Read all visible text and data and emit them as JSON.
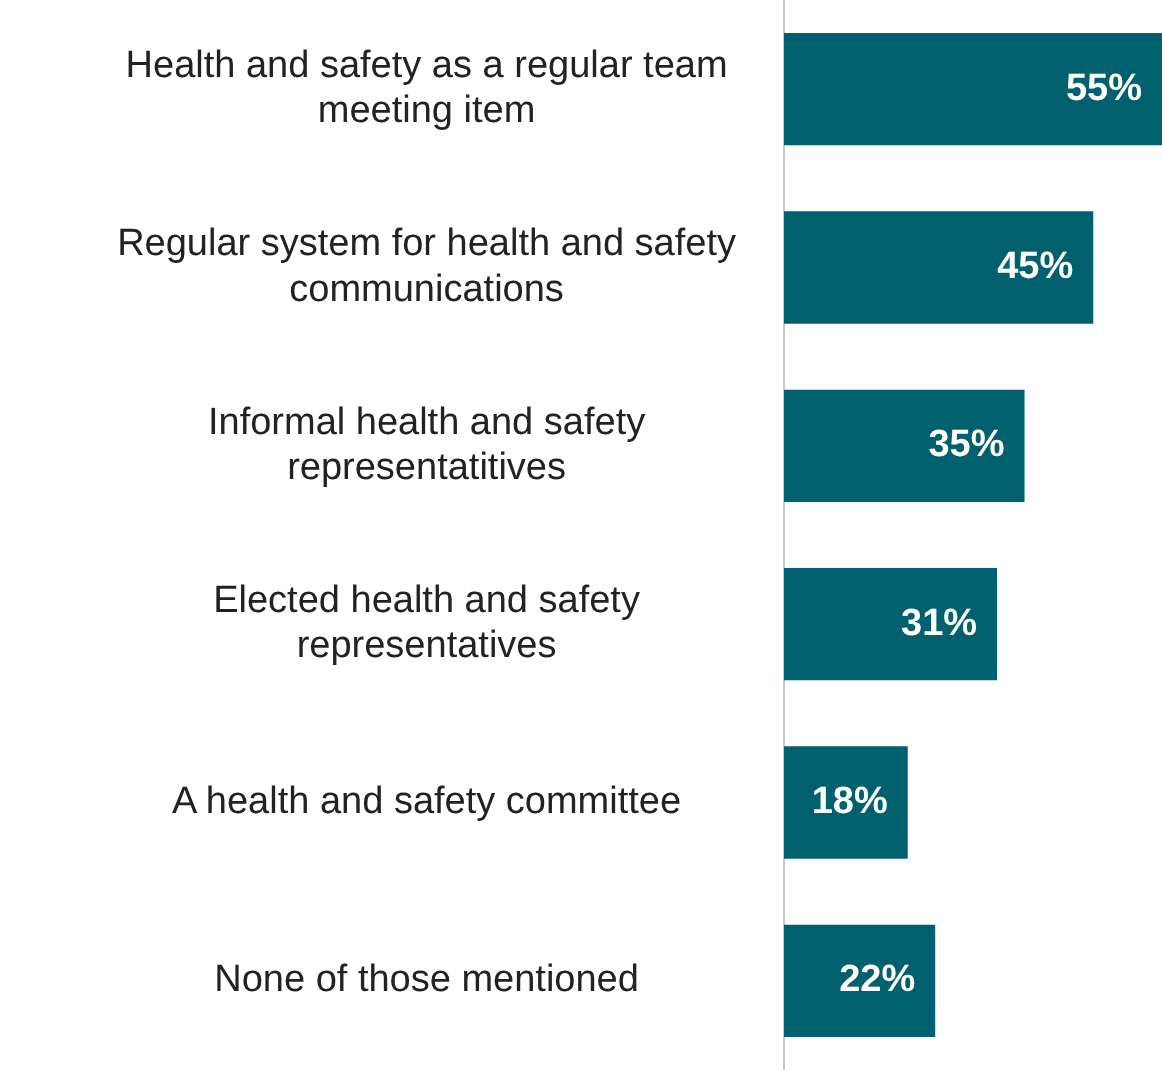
{
  "chart_data": {
    "type": "bar",
    "orientation": "horizontal",
    "categories": [
      "Health and safety as a regular team meeting item",
      "Regular system for health and safety communications",
      "Informal health and safety representatitives",
      "Elected health and safety representatives",
      "A health and safety committee",
      "None of those mentioned"
    ],
    "values": [
      55,
      45,
      35,
      31,
      18,
      22
    ],
    "color": "#00606e",
    "data_labels": true,
    "value_labels": [
      "55%",
      "45%",
      "35%",
      "31%",
      "18%",
      "22%"
    ]
  }
}
